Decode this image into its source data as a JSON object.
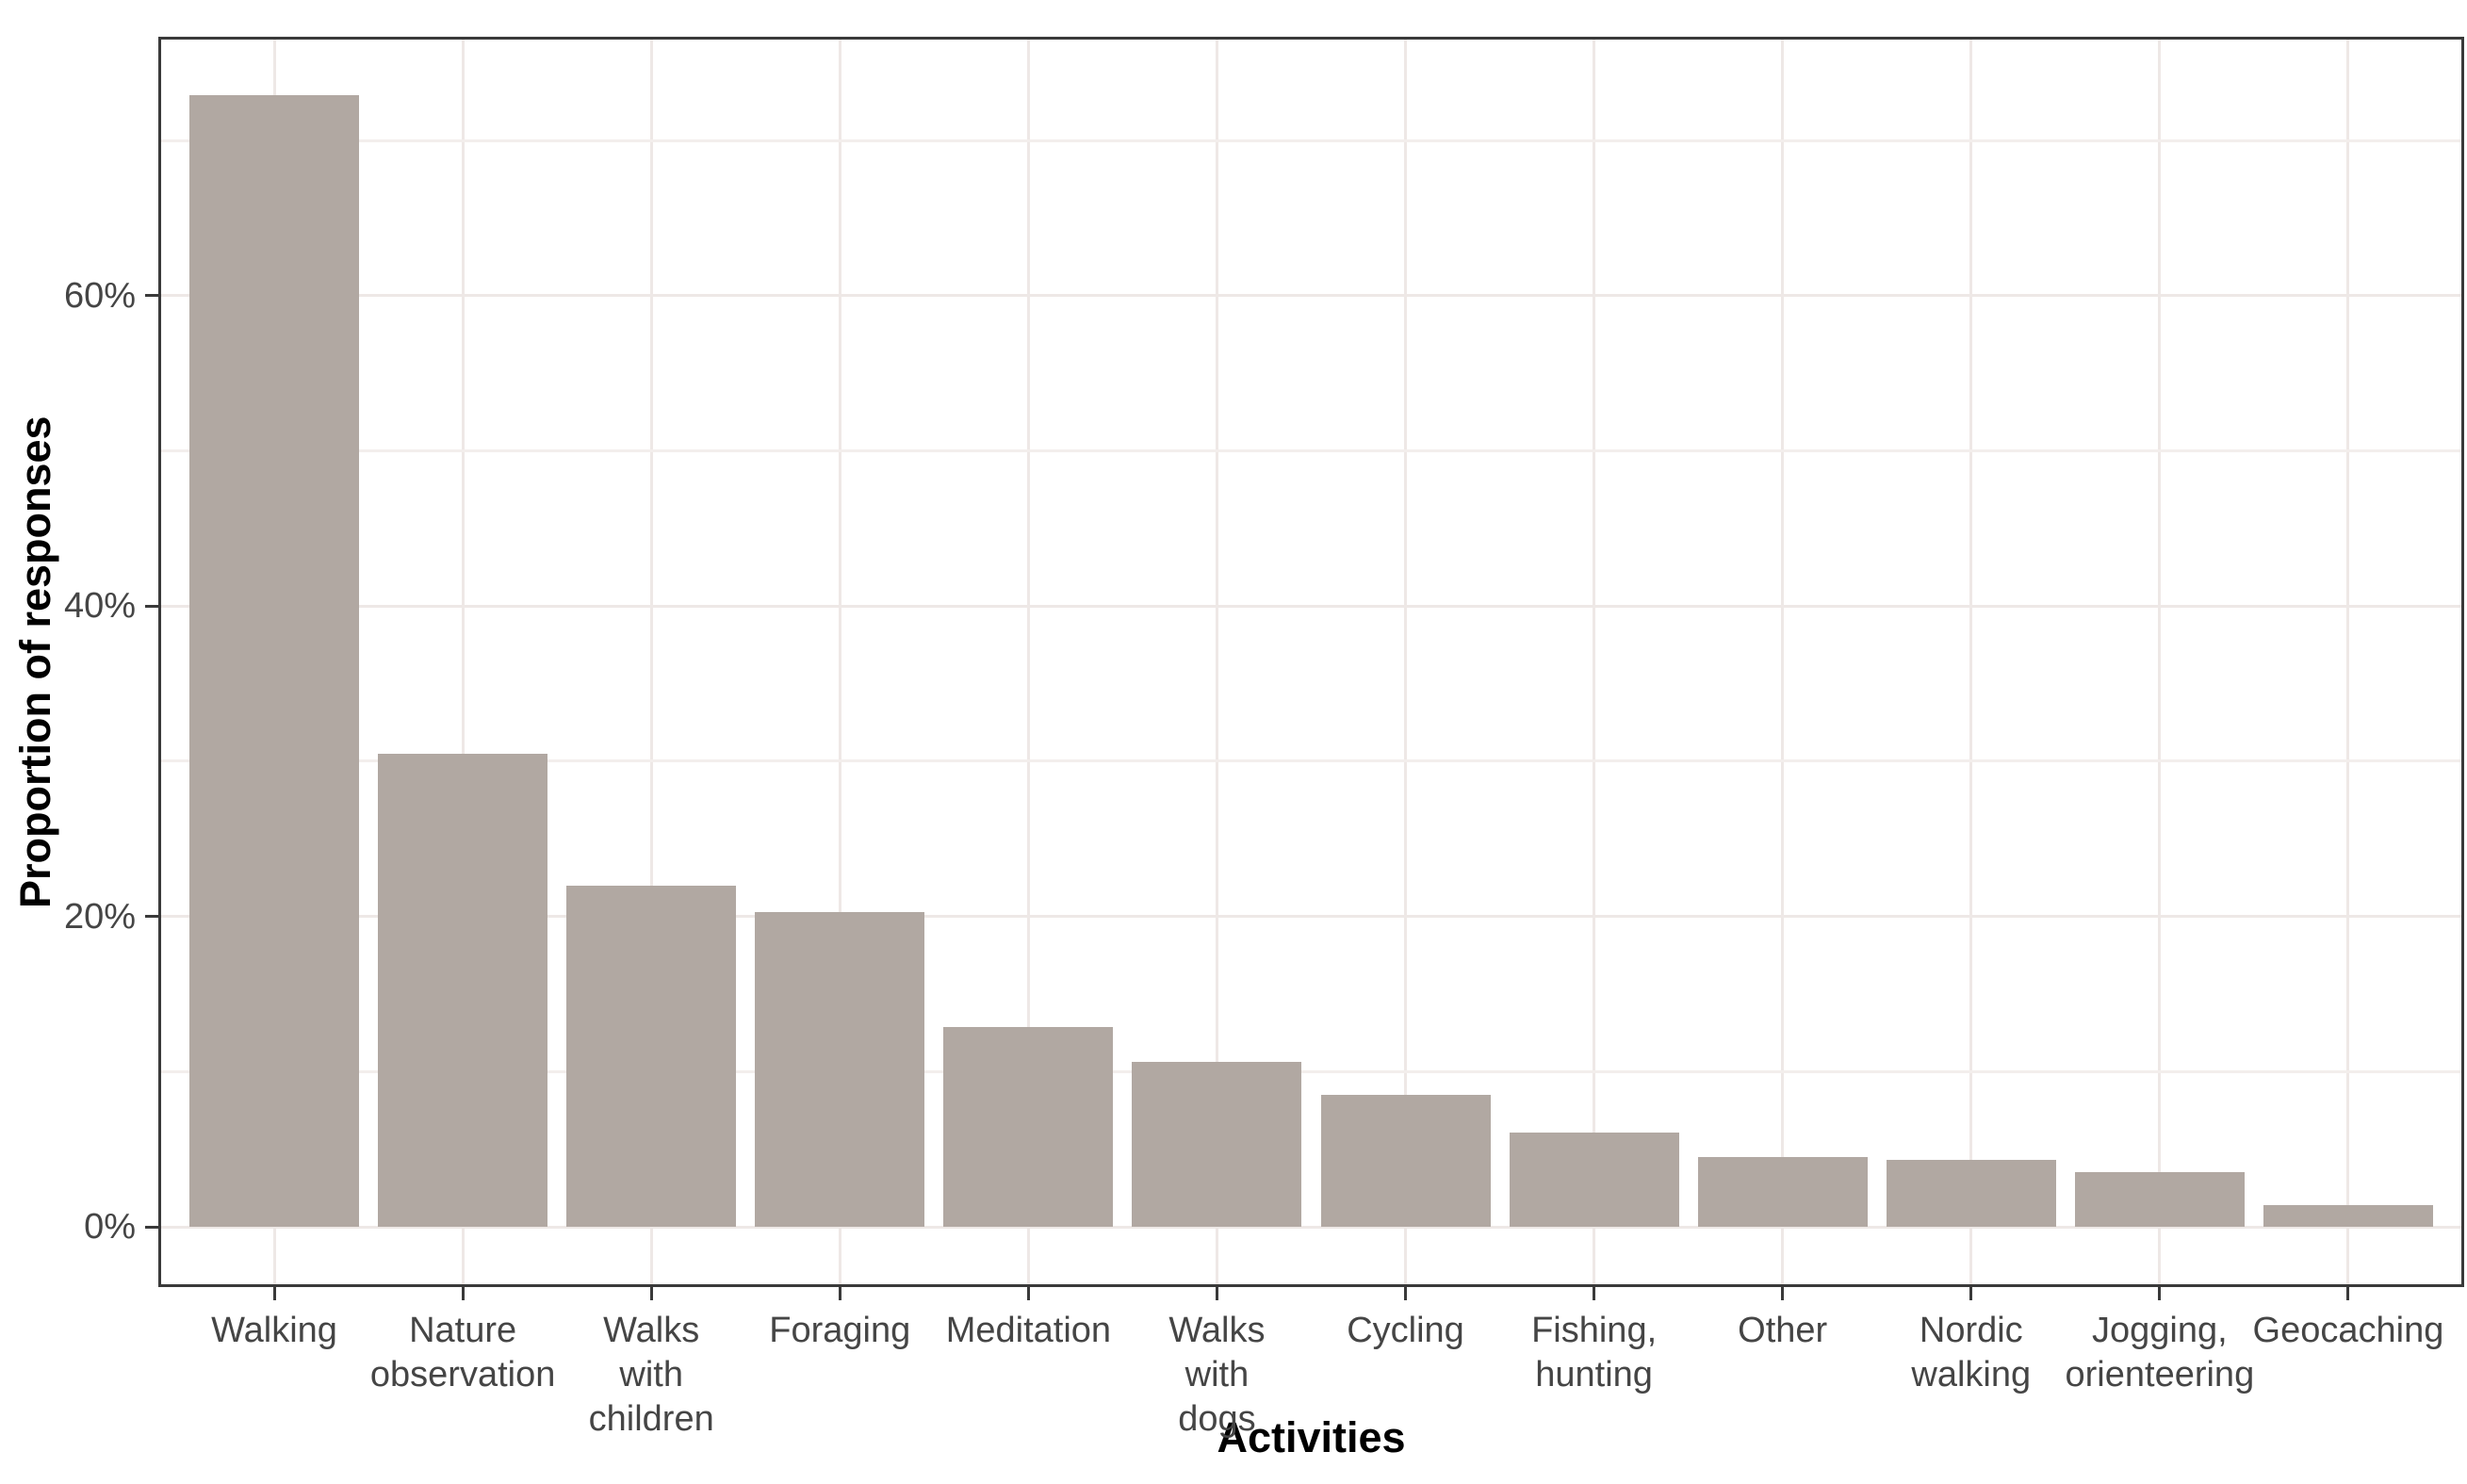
{
  "chart_data": {
    "type": "bar",
    "title": "",
    "xlabel": "Activities",
    "ylabel": "Proportion of responses",
    "unit": "%",
    "categories": [
      "Walking",
      "Nature observation",
      "Walks with children",
      "Foraging",
      "Meditation",
      "Walks with dogs",
      "Cycling",
      "Fishing, hunting",
      "Other",
      "Nordic walking",
      "Jogging, orienteering",
      "Geocaching"
    ],
    "category_label_lines": [
      [
        "Walking"
      ],
      [
        "Nature",
        "observation"
      ],
      [
        "Walks",
        "with",
        "children"
      ],
      [
        "Foraging"
      ],
      [
        "Meditation"
      ],
      [
        "Walks",
        "with",
        "dogs"
      ],
      [
        "Cycling"
      ],
      [
        "Fishing,",
        "hunting"
      ],
      [
        "Other"
      ],
      [
        "Nordic",
        "walking"
      ],
      [
        "Jogging,",
        "orienteering"
      ],
      [
        "Geocaching"
      ]
    ],
    "values": [
      72.9,
      30.5,
      22.0,
      20.3,
      12.9,
      10.6,
      8.5,
      6.1,
      4.5,
      4.3,
      3.5,
      1.4
    ],
    "y_ticks": [
      0,
      20,
      40,
      60
    ],
    "y_tick_labels": [
      "0%",
      "20%",
      "40%",
      "60%"
    ],
    "y_minor_ticks": [
      10,
      30,
      50,
      70
    ],
    "ylim": [
      -3.7,
      76.5
    ],
    "bar_relative_width": 0.9,
    "grid": true,
    "legend": "none",
    "colors": {
      "bar_fill": "#b1a8a2",
      "grid_major": "#eee8e6",
      "grid_minor": "#f3eeec",
      "panel_border": "#3a3a3a",
      "axis_text": "#454545",
      "title_text": "#000000",
      "background": "#ffffff"
    }
  }
}
